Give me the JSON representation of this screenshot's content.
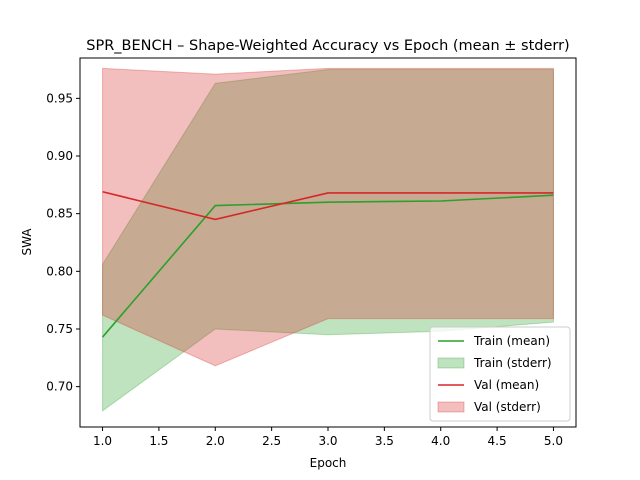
{
  "chart_data": {
    "type": "line",
    "title": "SPR_BENCH – Shape-Weighted Accuracy vs Epoch (mean ± stderr)",
    "xlabel": "Epoch",
    "ylabel": "SWA",
    "xlim": [
      0.8,
      5.2
    ],
    "ylim": [
      0.665,
      0.985
    ],
    "x_ticks": [
      1.0,
      1.5,
      2.0,
      2.5,
      3.0,
      3.5,
      4.0,
      4.5,
      5.0
    ],
    "x_tick_labels": [
      "1.0",
      "1.5",
      "2.0",
      "2.5",
      "3.0",
      "3.5",
      "4.0",
      "4.5",
      "5.0"
    ],
    "y_ticks": [
      0.7,
      0.75,
      0.8,
      0.85,
      0.9,
      0.95
    ],
    "y_tick_labels": [
      "0.70",
      "0.75",
      "0.80",
      "0.85",
      "0.90",
      "0.95"
    ],
    "grid": false,
    "legend_position": "lower-right",
    "x": [
      1,
      2,
      3,
      4,
      5
    ],
    "series": [
      {
        "name": "Train (mean)",
        "band_name": "Train (stderr)",
        "color": "#2ca02c",
        "band_color": "#2ca02c",
        "mean": [
          0.743,
          0.857,
          0.86,
          0.861,
          0.866
        ],
        "lower": [
          0.679,
          0.75,
          0.745,
          0.748,
          0.756
        ],
        "upper": [
          0.806,
          0.963,
          0.975,
          0.975,
          0.975
        ]
      },
      {
        "name": "Val (mean)",
        "band_name": "Val (stderr)",
        "color": "#d62728",
        "band_color": "#d62728",
        "mean": [
          0.869,
          0.845,
          0.868,
          0.868,
          0.868
        ],
        "lower": [
          0.762,
          0.718,
          0.759,
          0.759,
          0.759
        ],
        "upper": [
          0.976,
          0.971,
          0.976,
          0.976,
          0.976
        ]
      }
    ]
  }
}
